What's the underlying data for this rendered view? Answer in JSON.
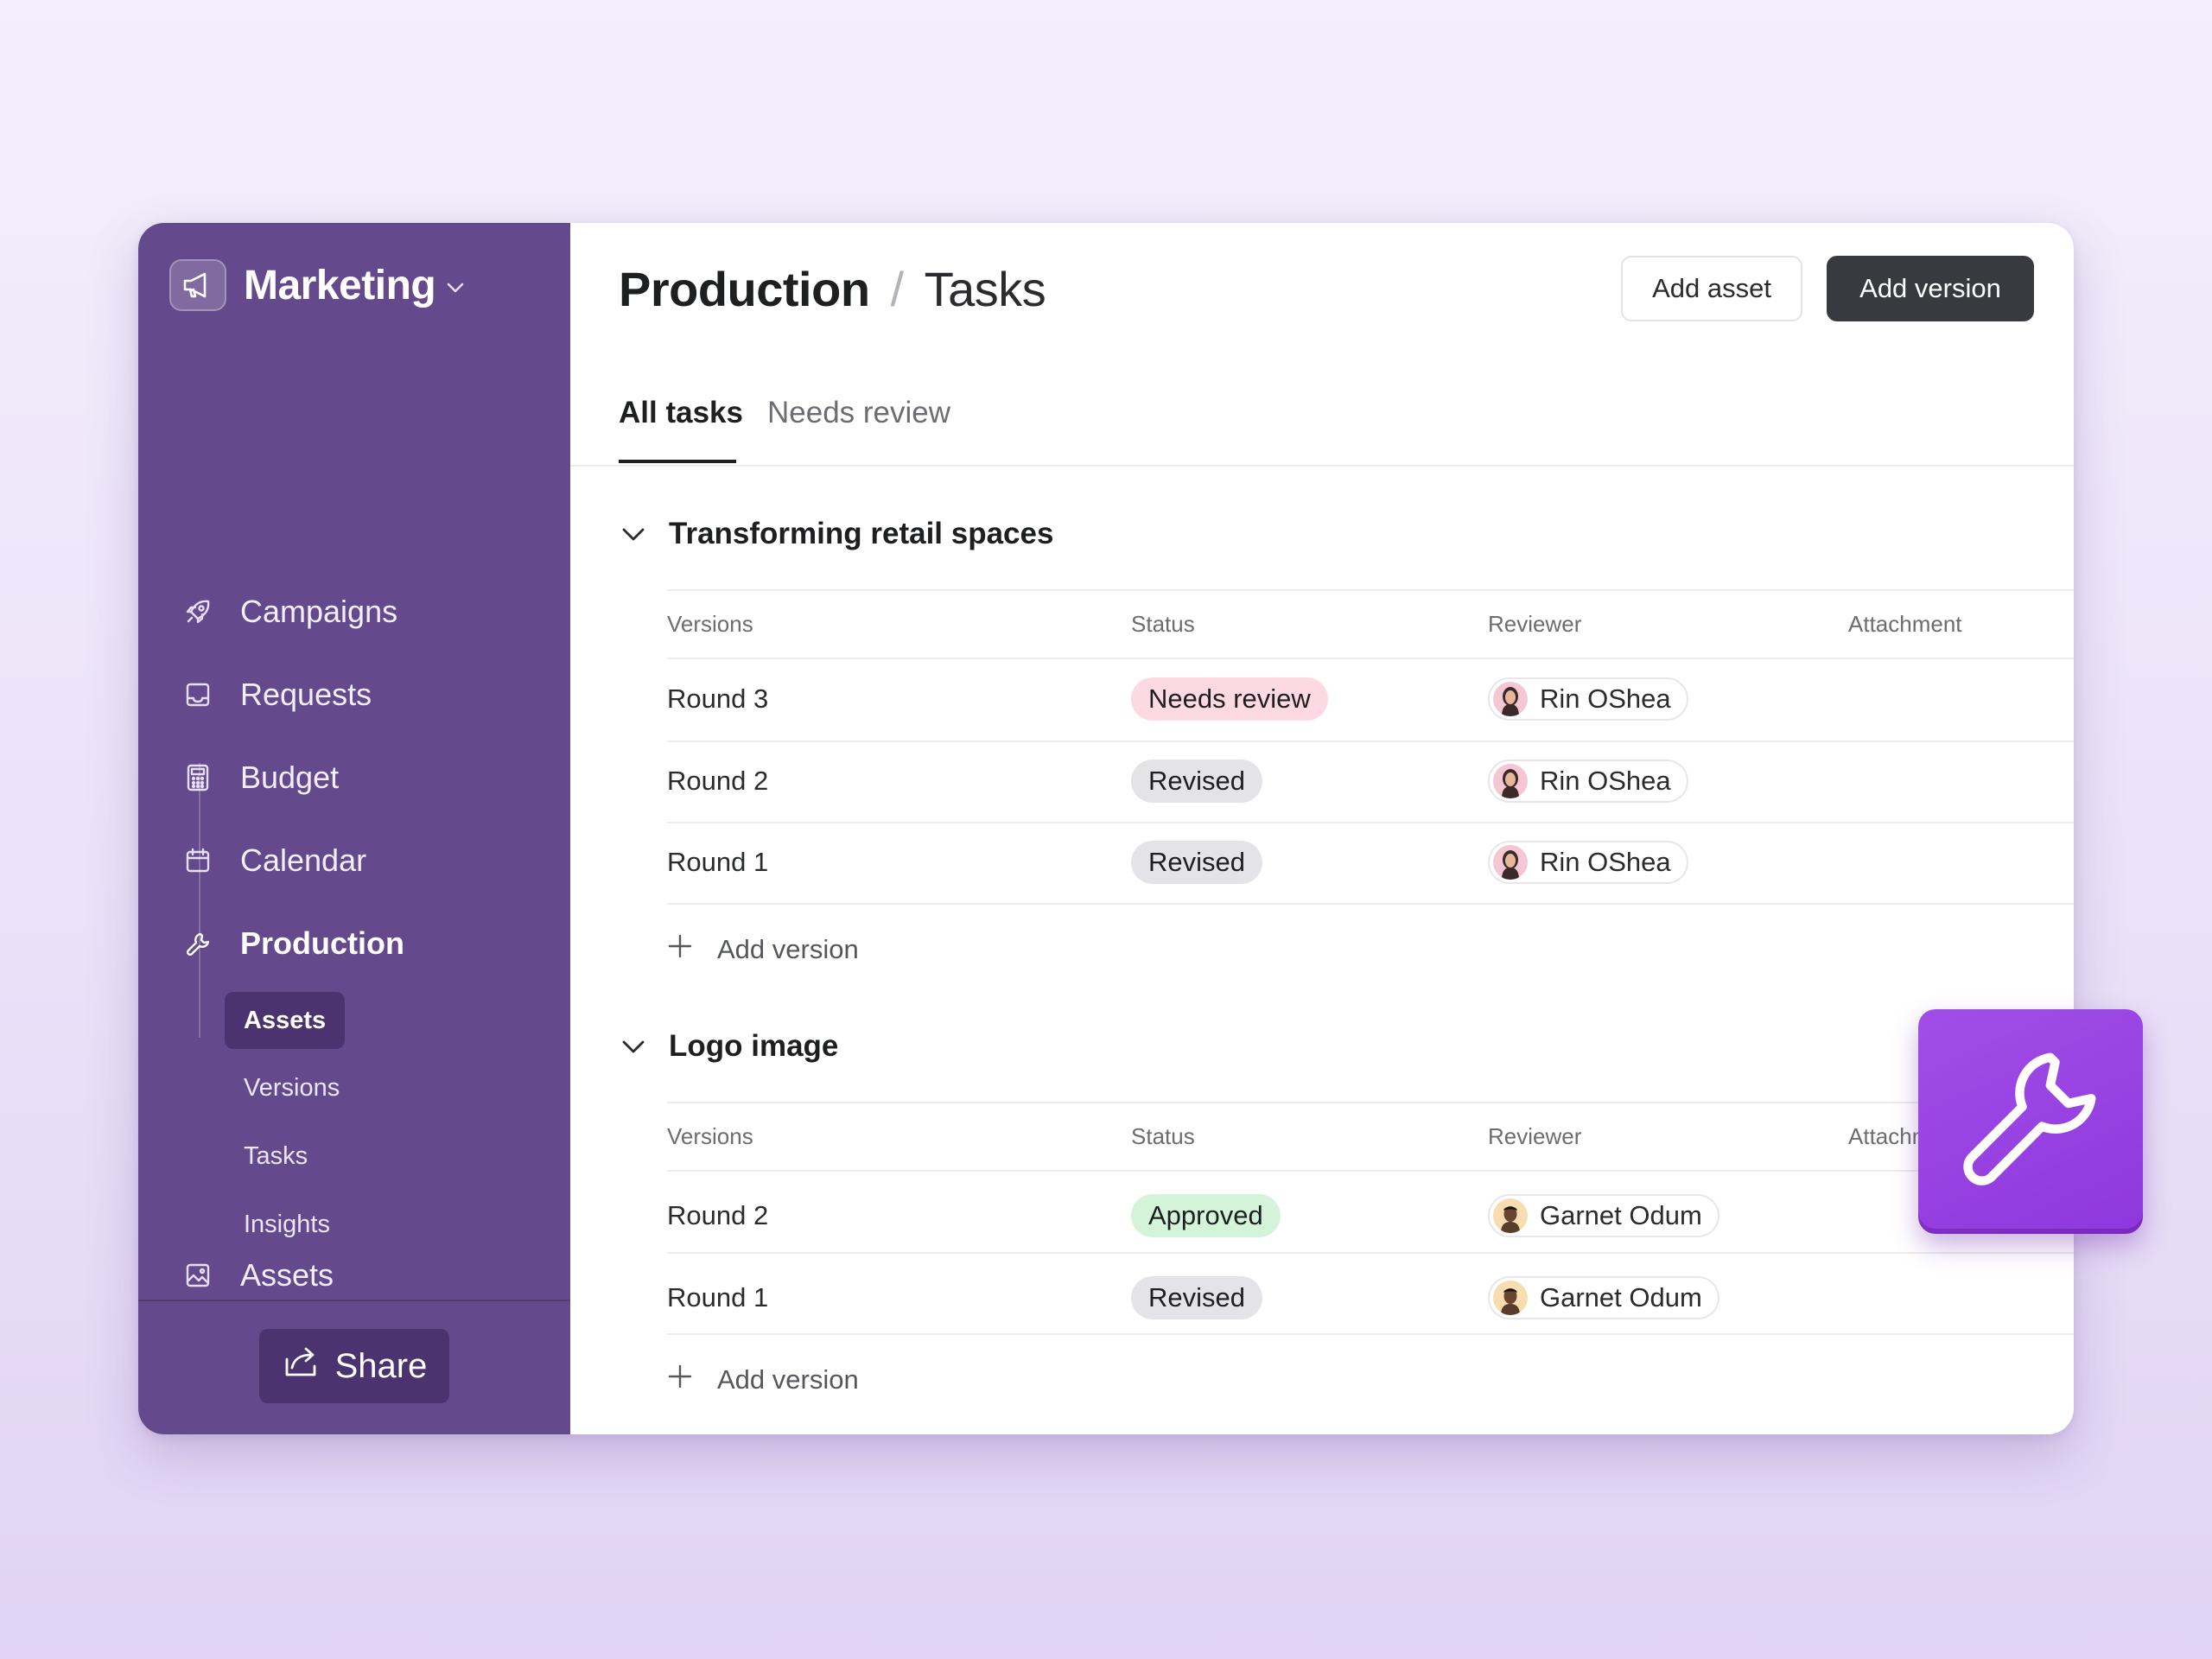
{
  "sidebar": {
    "workspace": {
      "name": "Marketing",
      "icon": "megaphone-icon"
    },
    "nav": [
      {
        "label": "Campaigns",
        "icon": "rocket-icon"
      },
      {
        "label": "Requests",
        "icon": "inbox-icon"
      },
      {
        "label": "Budget",
        "icon": "calculator-icon"
      },
      {
        "label": "Calendar",
        "icon": "calendar-icon"
      },
      {
        "label": "Production",
        "icon": "wrench-icon",
        "active": true
      },
      {
        "label": "Assets",
        "icon": "image-icon"
      }
    ],
    "subnav": [
      {
        "label": "Assets",
        "active": true
      },
      {
        "label": "Versions"
      },
      {
        "label": "Tasks"
      },
      {
        "label": "Insights"
      }
    ],
    "share_label": "Share",
    "colors": {
      "background": "#644a8c",
      "active_item": "#4b3370"
    }
  },
  "header": {
    "breadcrumb": [
      "Production",
      "Tasks"
    ],
    "separator": "/",
    "add_asset_label": "Add asset",
    "add_version_label": "Add version"
  },
  "tabs": [
    {
      "label": "All tasks",
      "active": true
    },
    {
      "label": "Needs review"
    }
  ],
  "columns": [
    "Versions",
    "Status",
    "Reviewer",
    "Attachment"
  ],
  "sections": [
    {
      "title": "Transforming retail spaces",
      "rows": [
        {
          "version": "Round 3",
          "status": "Needs review",
          "reviewer": "Rin OShea"
        },
        {
          "version": "Round 2",
          "status": "Revised",
          "reviewer": "Rin OShea"
        },
        {
          "version": "Round 1",
          "status": "Revised",
          "reviewer": "Rin OShea"
        }
      ],
      "add_label": "Add version"
    },
    {
      "title": "Logo image",
      "rows": [
        {
          "version": "Round 2",
          "status": "Approved",
          "reviewer": "Garnet Odum"
        },
        {
          "version": "Round 1",
          "status": "Revised",
          "reviewer": "Garnet Odum"
        }
      ],
      "add_label": "Add version"
    }
  ],
  "status_colors": {
    "Needs review": "#fdd9e3",
    "Revised": "#e4e4e8",
    "Approved": "#d3f4d9"
  },
  "badge": {
    "icon": "wrench-icon",
    "color": "#9b45e4"
  }
}
